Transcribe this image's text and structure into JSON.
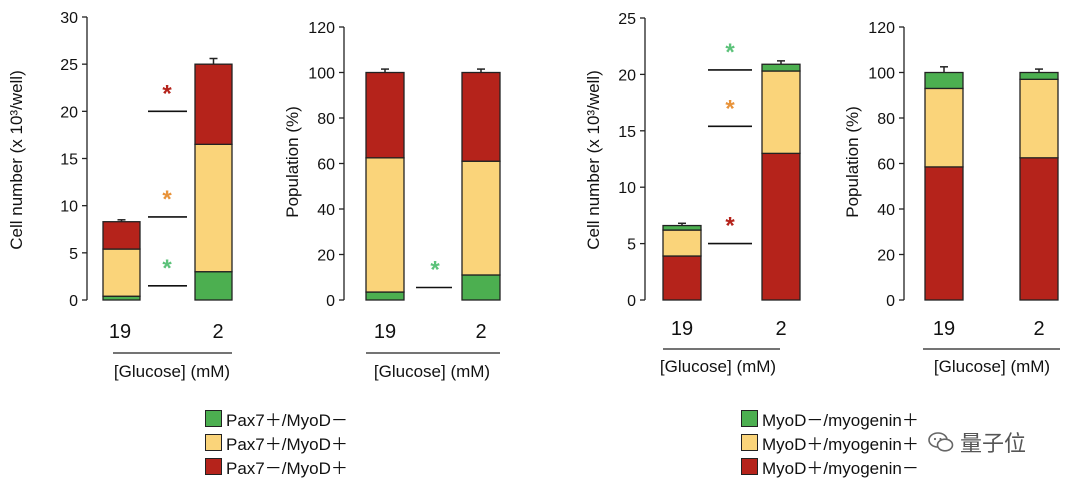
{
  "colors": {
    "green": "#4caf50",
    "yellow": "#fad47a",
    "red": "#b5231b",
    "star_red": "#b5231b",
    "star_orange": "#e8933a",
    "star_green": "#5cc27a"
  },
  "chart_data": [
    {
      "type": "bar",
      "stacked": true,
      "ylabel": "Cell number (x 10³/well)",
      "xlabel": "[Glucose] (mM)",
      "categories": [
        "19",
        "2"
      ],
      "ylim": [
        0,
        30
      ],
      "yticks": [
        0,
        5,
        10,
        15,
        20,
        25,
        30
      ],
      "series": [
        {
          "color": "green",
          "values": [
            0.4,
            3.0
          ],
          "errors": [
            0.3,
            0.8
          ]
        },
        {
          "color": "yellow",
          "values": [
            5.0,
            13.5
          ],
          "errors": [
            0.2,
            0.9
          ]
        },
        {
          "color": "red",
          "values": [
            2.9,
            8.5
          ],
          "errors": [
            0.2,
            0.6
          ]
        }
      ],
      "significance": [
        {
          "star": "*",
          "color": "star_red",
          "level": 20
        },
        {
          "star": "*",
          "color": "star_orange",
          "level": 8.8
        },
        {
          "star": "*",
          "color": "star_green",
          "level": 1.5
        }
      ],
      "legend": "legend_left"
    },
    {
      "type": "bar",
      "stacked": true,
      "ylabel": "Population (%)",
      "xlabel": "[Glucose] (mM)",
      "categories": [
        "19",
        "2"
      ],
      "ylim": [
        0,
        120
      ],
      "yticks": [
        0,
        20,
        40,
        60,
        80,
        100,
        120
      ],
      "series": [
        {
          "color": "green",
          "values": [
            3.5,
            11.0
          ],
          "errors": [
            2.5,
            3.0
          ]
        },
        {
          "color": "yellow",
          "values": [
            59.0,
            50.0
          ],
          "errors": [
            3.0,
            3.5
          ]
        },
        {
          "color": "red",
          "values": [
            37.5,
            39.0
          ],
          "errors": [
            1.5,
            1.5
          ]
        }
      ],
      "significance": [
        {
          "star": "*",
          "color": "star_green",
          "level": 5.5
        }
      ],
      "legend": "legend_left"
    },
    {
      "type": "bar",
      "stacked": true,
      "ylabel": "Cell number (x 10³/well)",
      "xlabel": "[Glucose] (mM)",
      "categories": [
        "19",
        "2"
      ],
      "ylim": [
        0,
        25
      ],
      "yticks": [
        0,
        5,
        10,
        15,
        20,
        25
      ],
      "series": [
        {
          "color": "red",
          "values": [
            3.9,
            13.0
          ],
          "errors": [
            0.8,
            0.6
          ]
        },
        {
          "color": "yellow",
          "values": [
            2.3,
            7.3
          ],
          "errors": [
            0.0,
            0.0
          ]
        },
        {
          "color": "green",
          "values": [
            0.4,
            0.6
          ],
          "errors": [
            0.2,
            0.3
          ]
        }
      ],
      "significance": [
        {
          "star": "*",
          "color": "star_green",
          "level": 20.4
        },
        {
          "star": "*",
          "color": "star_orange",
          "level": 15.4
        },
        {
          "star": "*",
          "color": "star_red",
          "level": 5.0
        }
      ],
      "legend": "legend_right"
    },
    {
      "type": "bar",
      "stacked": true,
      "ylabel": "Population (%)",
      "xlabel": "[Glucose] (mM)",
      "categories": [
        "19",
        "2"
      ],
      "ylim": [
        0,
        120
      ],
      "yticks": [
        0,
        20,
        40,
        60,
        80,
        100,
        120
      ],
      "series": [
        {
          "color": "red",
          "values": [
            58.5,
            62.5
          ],
          "errors": [
            3.0,
            2.0
          ]
        },
        {
          "color": "yellow",
          "values": [
            34.5,
            34.5
          ],
          "errors": [
            0.5,
            0.5
          ]
        },
        {
          "color": "green",
          "values": [
            7.0,
            3.0
          ],
          "errors": [
            2.5,
            1.5
          ]
        }
      ],
      "significance": [],
      "legend": "legend_right"
    }
  ],
  "legend_left": [
    {
      "label": "Pax7＋/MyoD－",
      "color": "green"
    },
    {
      "label": "Pax7＋/MyoD＋",
      "color": "yellow"
    },
    {
      "label": "Pax7－/MyoD＋",
      "color": "red"
    }
  ],
  "legend_right": [
    {
      "label": "MyoD－/myogenin＋",
      "color": "green"
    },
    {
      "label": "MyoD＋/myogenin＋",
      "color": "yellow"
    },
    {
      "label": "MyoD＋/myogenin－",
      "color": "red"
    }
  ],
  "watermark": {
    "text": "量子位",
    "icon": "wechat-icon"
  }
}
